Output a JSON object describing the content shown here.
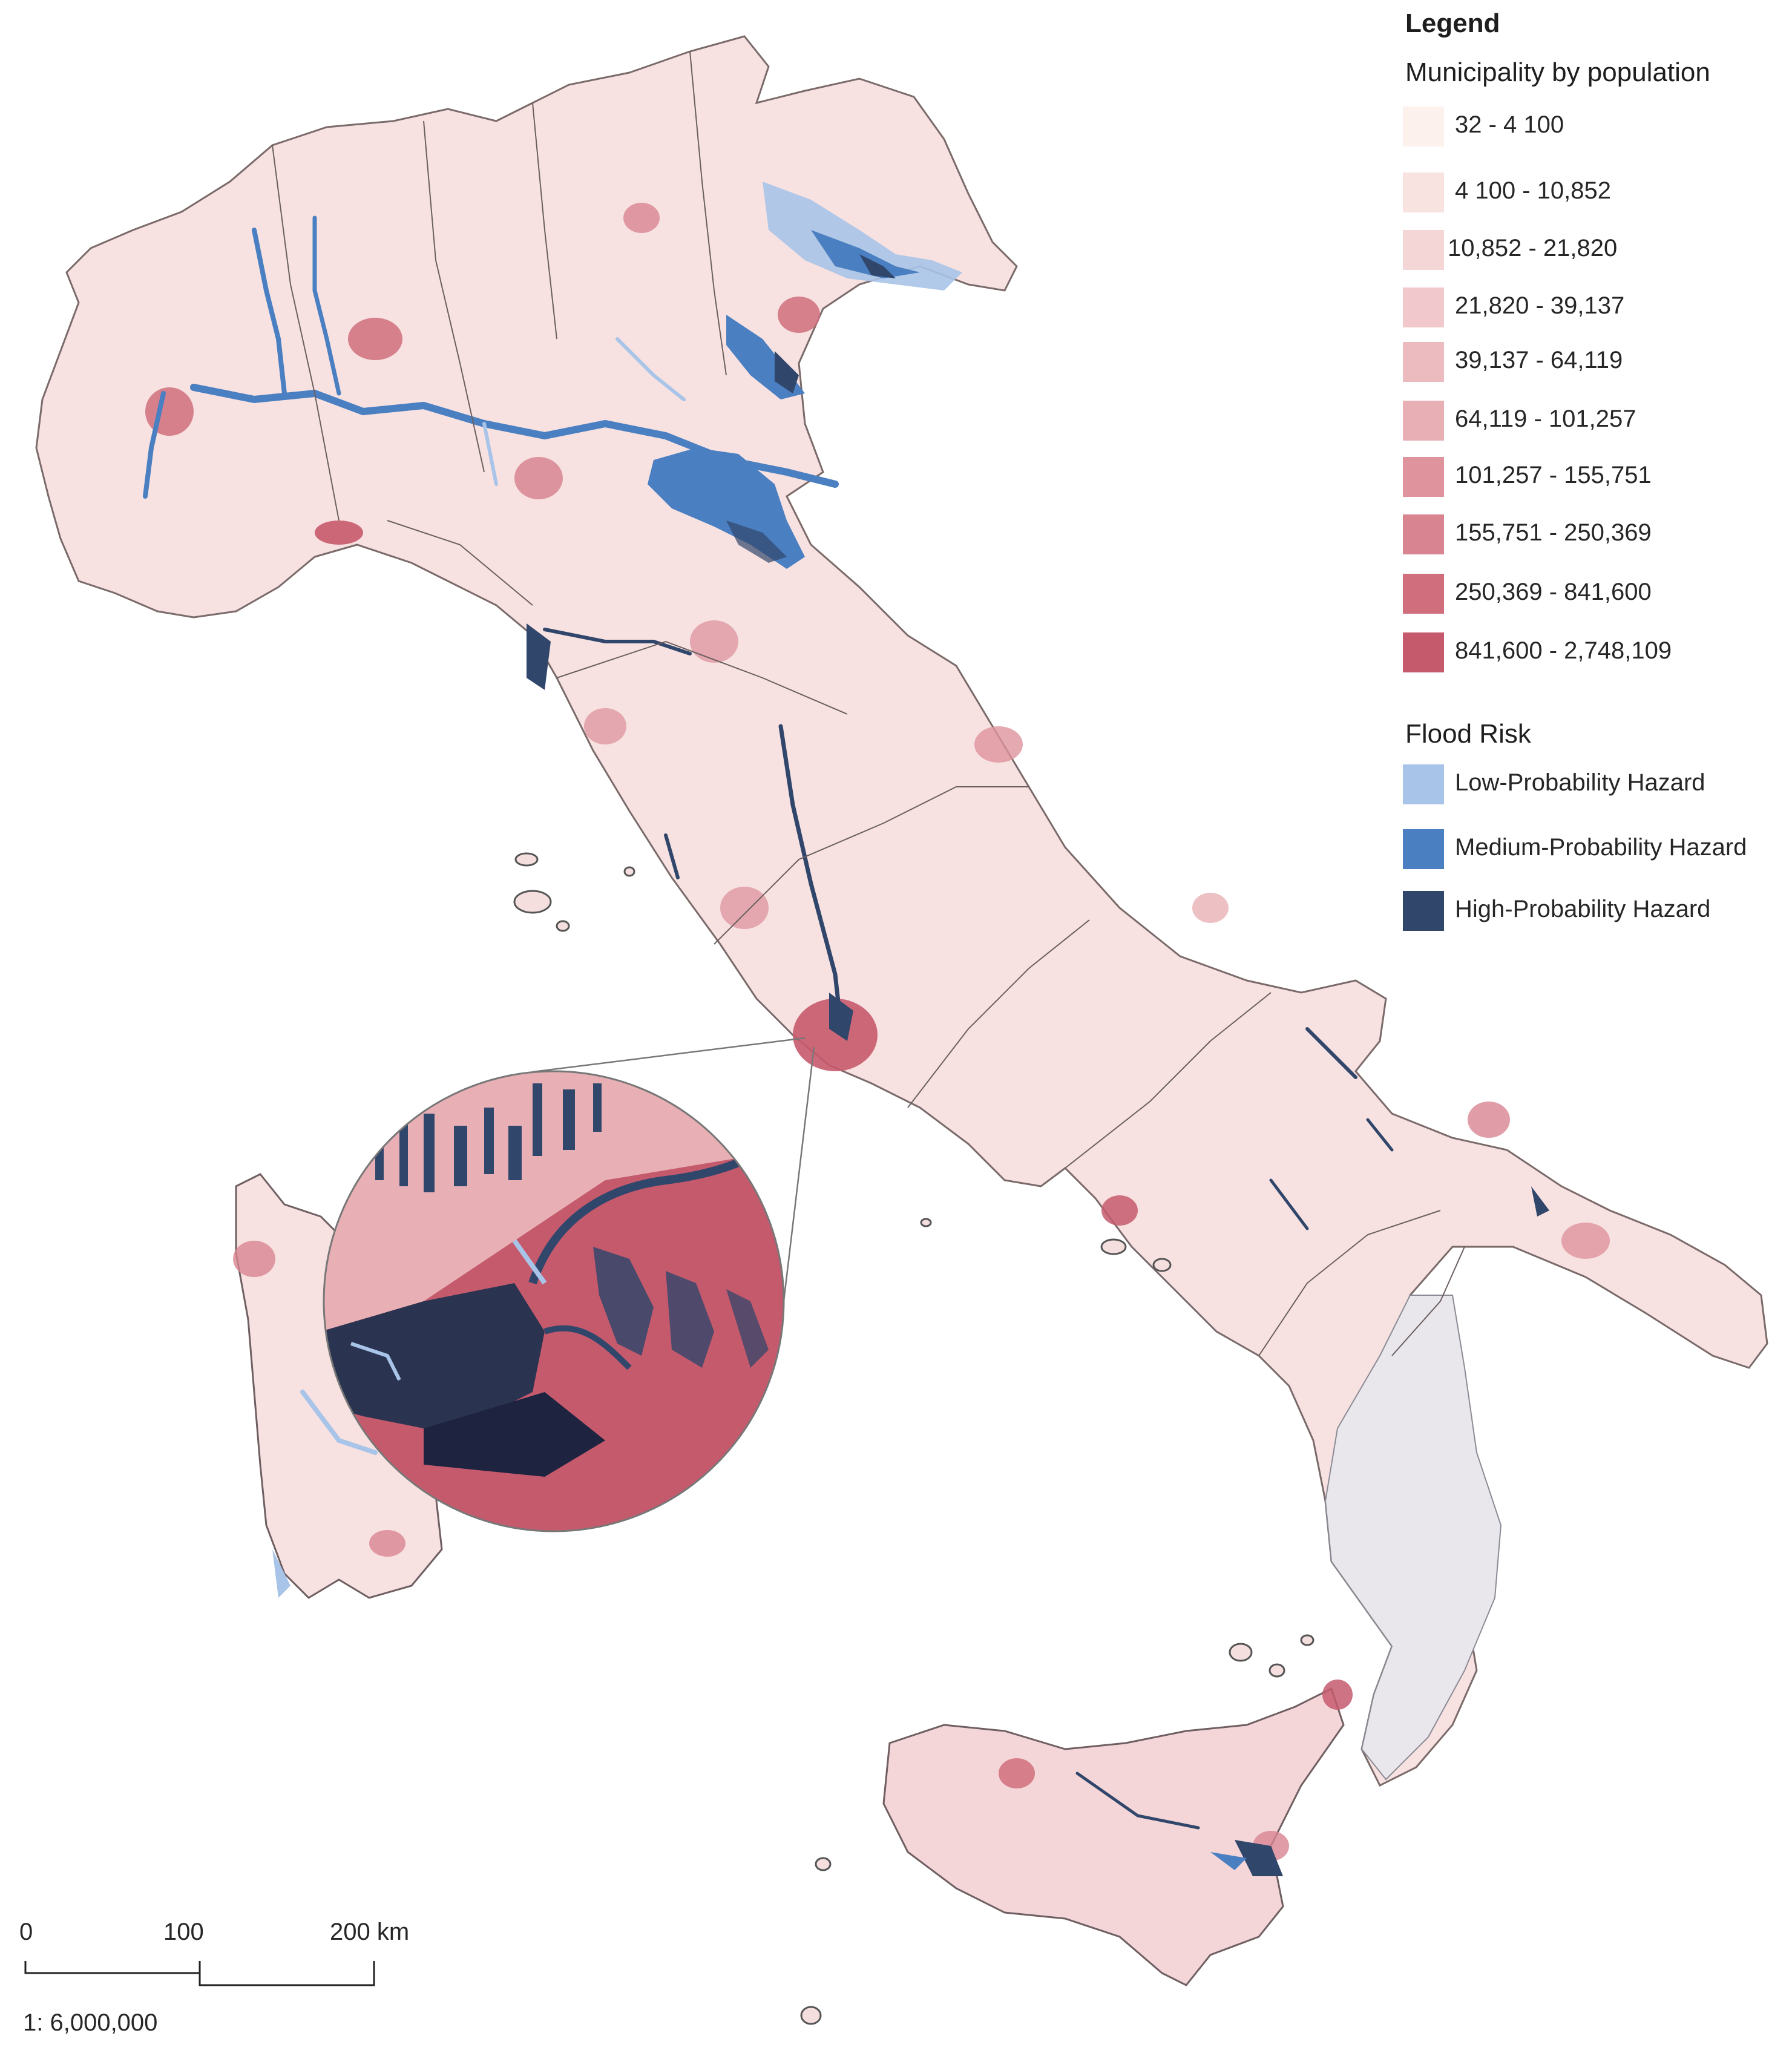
{
  "legend": {
    "title": "Legend",
    "population_heading": "Municipality by population",
    "population_classes": [
      {
        "label": "32 - 4 100",
        "color": "#fdf1ee"
      },
      {
        "label": "4 100 - 10,852",
        "color": "#f9e3e1"
      },
      {
        "label": "10,852 - 21,820",
        "color": "#f5d6d7"
      },
      {
        "label": "21,820 - 39,137",
        "color": "#f1c8cb"
      },
      {
        "label": "39,137 - 64,119",
        "color": "#ecbbbf"
      },
      {
        "label": "64,119 - 101,257",
        "color": "#e8b0b5"
      },
      {
        "label": "101,257 - 155,751",
        "color": "#de939d"
      },
      {
        "label": "155,751 - 250,369",
        "color": "#d88591"
      },
      {
        "label": "250,369 - 841,600",
        "color": "#d06e7d"
      },
      {
        "label": "841,600 - 2,748,109",
        "color": "#c65a6d"
      }
    ],
    "flood_heading": "Flood Risk",
    "flood_classes": [
      {
        "label": "Low-Probability Hazard",
        "color": "#a8c4e8"
      },
      {
        "label": "Medium-Probability Hazard",
        "color": "#4a7fc1"
      },
      {
        "label": "High-Probability Hazard",
        "color": "#31466b"
      }
    ]
  },
  "scale_bar": {
    "ticks": [
      "0",
      "100",
      "200 km"
    ],
    "ratio": "1: 6,000,000"
  }
}
